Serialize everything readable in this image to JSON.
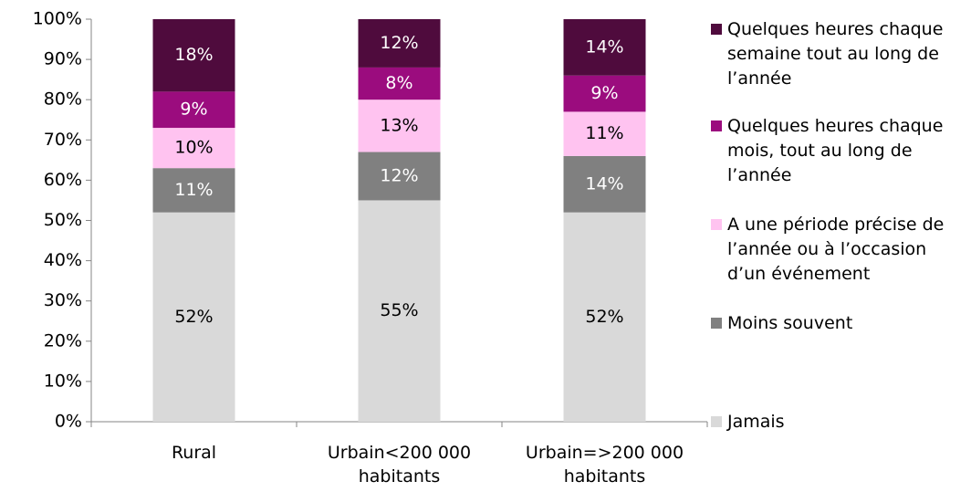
{
  "chart_data": {
    "type": "stacked_bar",
    "categories": [
      "Rural",
      "Urbain<200 000 habitants",
      "Urbain=>200 000 habitants"
    ],
    "series": [
      {
        "name": "Jamais",
        "color": "#d9d9d9",
        "values": [
          52,
          55,
          52
        ],
        "value_labels": [
          "52%",
          "55%",
          "52%"
        ]
      },
      {
        "name": "Moins souvent",
        "color": "#808080",
        "values": [
          11,
          12,
          14
        ],
        "value_labels": [
          "11%",
          "12%",
          "14%"
        ]
      },
      {
        "name": "A une période précise de l’année ou à l’occasion d’un événement",
        "color": "#ffc3f0",
        "values": [
          10,
          13,
          11
        ],
        "value_labels": [
          "10%",
          "13%",
          "11%"
        ]
      },
      {
        "name": "Quelques heures chaque mois, tout au long de l’année",
        "color": "#9b0c7e",
        "values": [
          9,
          8,
          9
        ],
        "value_labels": [
          "9%",
          "8%",
          "9%"
        ]
      },
      {
        "name": "Quelques heures chaque semaine tout au long de l’année",
        "color": "#4f0b3d",
        "values": [
          18,
          12,
          14
        ],
        "value_labels": [
          "18%",
          "12%",
          "14%"
        ]
      }
    ],
    "ylim": [
      0,
      100
    ],
    "yticks": [
      {
        "value": 0,
        "label": "0%"
      },
      {
        "value": 10,
        "label": "10%"
      },
      {
        "value": 20,
        "label": "20%"
      },
      {
        "value": 30,
        "label": "30%"
      },
      {
        "value": 40,
        "label": "40%"
      },
      {
        "value": 50,
        "label": "50%"
      },
      {
        "value": 60,
        "label": "60%"
      },
      {
        "value": 70,
        "label": "70%"
      },
      {
        "value": 80,
        "label": "80%"
      },
      {
        "value": 90,
        "label": "90%"
      },
      {
        "value": 100,
        "label": "100%"
      }
    ],
    "legend": "right"
  }
}
